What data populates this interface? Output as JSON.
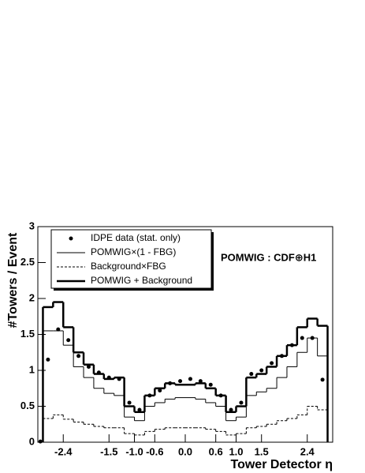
{
  "chart_data": {
    "type": "histogram",
    "xlabel": "Tower Detector η",
    "ylabel": "#Towers / Event",
    "annotation": "POMWIG : CDF⊕H1",
    "xlim": [
      -2.9,
      2.9
    ],
    "ylim": [
      0,
      3
    ],
    "xticks": [
      -2.4,
      -1.5,
      {
        "value": -1,
        "label": "-1.0"
      },
      -0.6,
      {
        "value": 0,
        "label": "0.0"
      },
      0.6,
      {
        "value": 1,
        "label": "1.0"
      },
      1.5,
      2.4
    ],
    "yticks": [
      0,
      0.5,
      1,
      1.5,
      2,
      2.5,
      3
    ],
    "bins": [
      -2.8,
      -2.6,
      -2.4,
      -2.2,
      -2.0,
      -1.8,
      -1.6,
      -1.4,
      -1.2,
      -1.0,
      -0.8,
      -0.6,
      -0.4,
      -0.2,
      0.0,
      0.2,
      0.4,
      0.6,
      0.8,
      1.0,
      1.2,
      1.4,
      1.6,
      1.8,
      2.0,
      2.2,
      2.4,
      2.6,
      2.8
    ],
    "series": [
      {
        "name": "POMWIG×(1 - FBG)",
        "style": "solid",
        "color": "#000000",
        "values": [
          1.55,
          1.55,
          1.35,
          1.05,
          0.9,
          0.75,
          0.68,
          0.65,
          0.35,
          0.3,
          0.5,
          0.55,
          0.6,
          0.62,
          0.62,
          0.6,
          0.55,
          0.5,
          0.3,
          0.35,
          0.65,
          0.7,
          0.75,
          0.9,
          1.05,
          1.25,
          1.45,
          1.2
        ]
      },
      {
        "name": "Background×FBG",
        "style": "dashed",
        "color": "#000000",
        "values": [
          0.33,
          0.38,
          0.32,
          0.28,
          0.25,
          0.22,
          0.2,
          0.2,
          0.12,
          0.1,
          0.15,
          0.18,
          0.2,
          0.2,
          0.2,
          0.2,
          0.18,
          0.15,
          0.1,
          0.12,
          0.2,
          0.22,
          0.25,
          0.3,
          0.33,
          0.38,
          0.5,
          0.45
        ]
      },
      {
        "name": "POMWIG + Background",
        "style": "thick",
        "color": "#000000",
        "values": [
          1.88,
          1.95,
          1.6,
          1.25,
          1.08,
          0.95,
          0.88,
          0.9,
          0.5,
          0.42,
          0.65,
          0.75,
          0.82,
          0.8,
          0.8,
          0.82,
          0.75,
          0.65,
          0.42,
          0.5,
          0.9,
          0.95,
          1.05,
          1.2,
          1.35,
          1.6,
          1.72,
          1.62
        ]
      }
    ],
    "data": {
      "name": "IDPE data (stat. only)",
      "color": "#000000",
      "x": [
        -2.85,
        -2.7,
        -2.5,
        -2.3,
        -2.1,
        -1.9,
        -1.7,
        -1.5,
        -1.3,
        -1.1,
        -0.9,
        -0.7,
        -0.5,
        -0.3,
        -0.1,
        0.1,
        0.3,
        0.5,
        0.7,
        0.9,
        1.1,
        1.3,
        1.5,
        1.7,
        1.9,
        2.1,
        2.3,
        2.5,
        2.7
      ],
      "values": [
        0.01,
        1.15,
        1.57,
        1.42,
        1.2,
        1.05,
        0.97,
        0.9,
        0.88,
        0.55,
        0.45,
        0.65,
        0.72,
        0.82,
        0.85,
        0.88,
        0.85,
        0.8,
        0.65,
        0.45,
        0.55,
        0.95,
        1.0,
        1.1,
        1.2,
        1.35,
        1.45,
        1.45,
        0.87
      ]
    }
  }
}
